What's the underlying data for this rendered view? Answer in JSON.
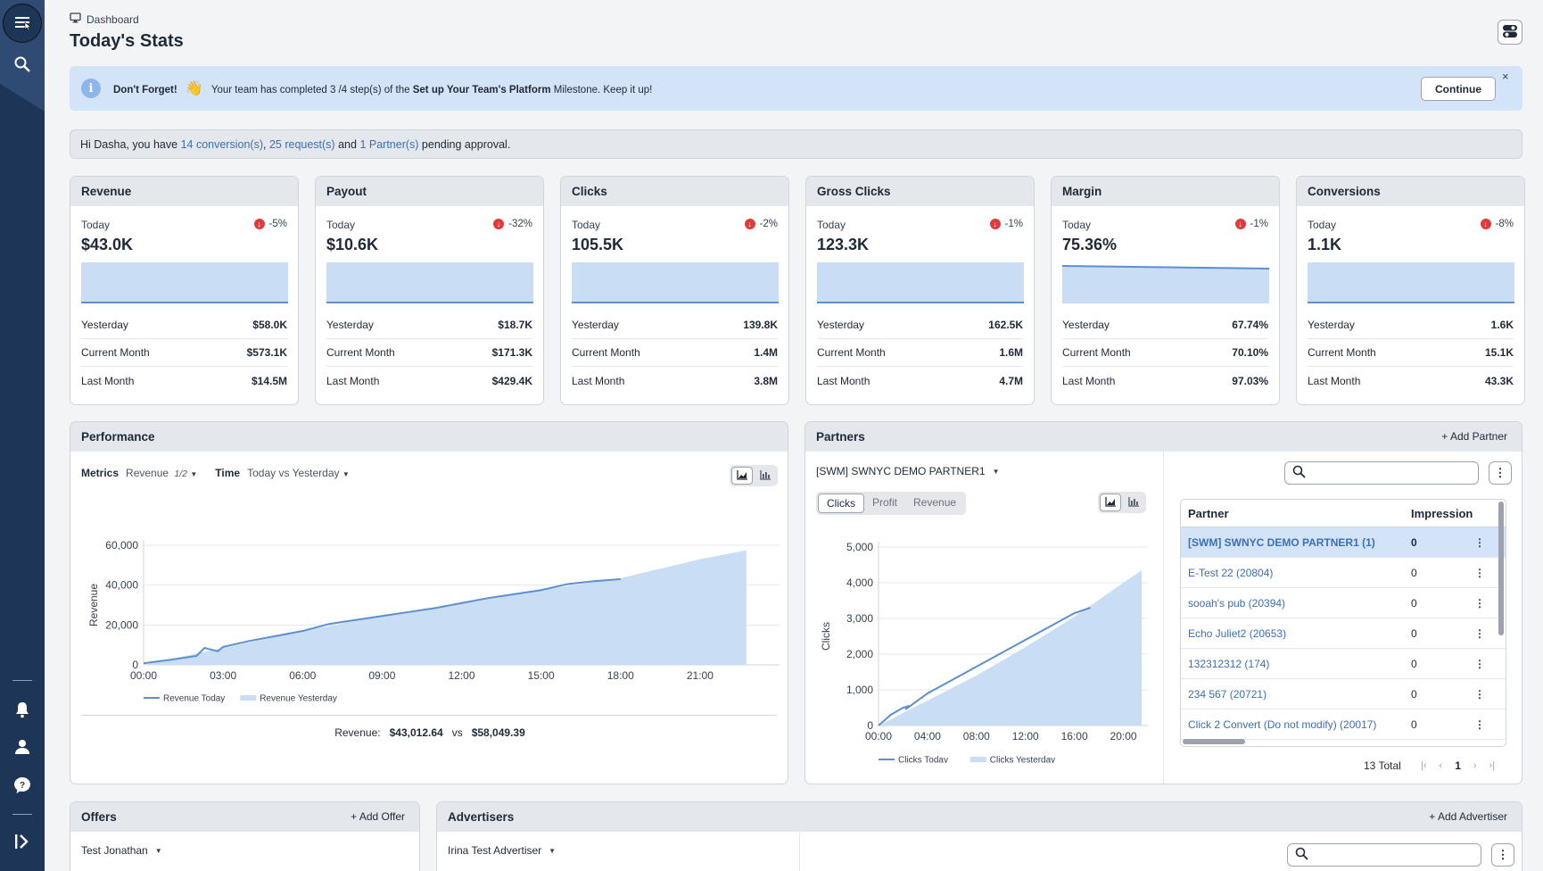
{
  "header": {
    "breadcrumb": "Dashboard",
    "title": "Today's Stats"
  },
  "milestone": {
    "lead": "Don't Forget!",
    "emoji": "👋",
    "text_before": "Your team has completed 3 /4 step(s) of the",
    "milestone_name": "Set up Your Team's Platform",
    "text_after": "Milestone. Keep it up!",
    "continue_label": "Continue",
    "close_label": "×"
  },
  "pending": {
    "prefix": "Hi Dasha, you have",
    "conversions": "14 conversion(s)",
    "sep1": ",",
    "requests": "25 request(s)",
    "and": "and",
    "partners": "1 Partner(s)",
    "suffix": "pending approval."
  },
  "stats": [
    {
      "title": "Revenue",
      "today_label": "Today",
      "change": "-5%",
      "value": "$43.0K",
      "rows": [
        [
          "Yesterday",
          "$58.0K"
        ],
        [
          "Current Month",
          "$573.1K"
        ],
        [
          "Last Month",
          "$14.5M"
        ]
      ]
    },
    {
      "title": "Payout",
      "today_label": "Today",
      "change": "-32%",
      "value": "$10.6K",
      "rows": [
        [
          "Yesterday",
          "$18.7K"
        ],
        [
          "Current Month",
          "$171.3K"
        ],
        [
          "Last Month",
          "$429.4K"
        ]
      ]
    },
    {
      "title": "Clicks",
      "today_label": "Today",
      "change": "-2%",
      "value": "105.5K",
      "rows": [
        [
          "Yesterday",
          "139.8K"
        ],
        [
          "Current Month",
          "1.4M"
        ],
        [
          "Last Month",
          "3.8M"
        ]
      ]
    },
    {
      "title": "Gross Clicks",
      "today_label": "Today",
      "change": "-1%",
      "value": "123.3K",
      "rows": [
        [
          "Yesterday",
          "162.5K"
        ],
        [
          "Current Month",
          "1.6M"
        ],
        [
          "Last Month",
          "4.7M"
        ]
      ]
    },
    {
      "title": "Margin",
      "today_label": "Today",
      "change": "-1%",
      "value": "75.36%",
      "rows": [
        [
          "Yesterday",
          "67.74%"
        ],
        [
          "Current Month",
          "70.10%"
        ],
        [
          "Last Month",
          "97.03%"
        ]
      ]
    },
    {
      "title": "Conversions",
      "today_label": "Today",
      "change": "-8%",
      "value": "1.1K",
      "rows": [
        [
          "Yesterday",
          "1.6K"
        ],
        [
          "Current Month",
          "15.1K"
        ],
        [
          "Last Month",
          "43.3K"
        ]
      ]
    }
  ],
  "performance": {
    "title": "Performance",
    "metrics_label": "Metrics",
    "metric_value": "Revenue",
    "metric_count": "1/2",
    "time_label": "Time",
    "time_value": "Today vs Yesterday",
    "footer_label": "Revenue:",
    "footer_today": "$43,012.64",
    "footer_vs": "vs",
    "footer_yesterday": "$58,049.39"
  },
  "partners": {
    "title": "Partners",
    "add_label": "Add Partner",
    "selected_partner": "[SWM] SWNYC DEMO PARTNER1",
    "tabs": [
      "Clicks",
      "Profit",
      "Revenue"
    ],
    "active_tab": "Clicks",
    "search_placeholder": "",
    "columns": [
      "Partner",
      "Impression"
    ],
    "rows": [
      {
        "name": "[SWM] SWNYC DEMO PARTNER1 (1)",
        "impressions": "0"
      },
      {
        "name": "E-Test 22 (20804)",
        "impressions": "0"
      },
      {
        "name": "sooah's pub (20394)",
        "impressions": "0"
      },
      {
        "name": "Echo Juliet2 (20653)",
        "impressions": "0"
      },
      {
        "name": "132312312 (174)",
        "impressions": "0"
      },
      {
        "name": "234 567 (20721)",
        "impressions": "0"
      },
      {
        "name": "Click 2 Convert (Do not modify) (20017)",
        "impressions": "0"
      }
    ],
    "total": "13 Total",
    "page": "1"
  },
  "offers": {
    "title": "Offers",
    "add_label": "Add Offer",
    "selected": "Test Jonathan"
  },
  "advertisers": {
    "title": "Advertisers",
    "add_label": "Add Advertiser",
    "selected": "Irina Test Advertiser",
    "search_placeholder": ""
  },
  "chart_data": [
    {
      "type": "area",
      "title": "",
      "xlabel": "",
      "ylabel": "Revenue",
      "x_ticks": [
        "00:00",
        "03:00",
        "06:00",
        "09:00",
        "12:00",
        "15:00",
        "18:00",
        "21:00"
      ],
      "y_ticks": [
        "0",
        "20,000",
        "40,000",
        "60,000"
      ],
      "xlim": [
        0,
        24
      ],
      "ylim": [
        0,
        60000
      ],
      "series": [
        {
          "name": "Revenue Today",
          "style": "line",
          "color": "#5b8fd0",
          "x": [
            0,
            1,
            2,
            2.3,
            2.8,
            3,
            4,
            5,
            6,
            7,
            8,
            9,
            10,
            11,
            12,
            13,
            14,
            15,
            16,
            17,
            18
          ],
          "y": [
            800,
            2500,
            4500,
            8500,
            6800,
            9000,
            12000,
            14500,
            17000,
            20500,
            22500,
            24500,
            26500,
            28500,
            31000,
            33500,
            35500,
            37500,
            40500,
            42000,
            43013
          ]
        },
        {
          "name": "Revenue Yesterday",
          "style": "area",
          "color": "#c9ddf5",
          "x": [
            0,
            3,
            6,
            9,
            12,
            15,
            18,
            21,
            22.75
          ],
          "y": [
            0,
            8500,
            17000,
            24500,
            31000,
            37500,
            43500,
            53000,
            57500
          ]
        }
      ]
    },
    {
      "type": "area",
      "title": "",
      "xlabel": "",
      "ylabel": "Clicks",
      "x_ticks": [
        "00:00",
        "04:00",
        "08:00",
        "12:00",
        "16:00",
        "20:00"
      ],
      "y_ticks": [
        "0",
        "1,000",
        "2,000",
        "3,000",
        "4,000",
        "5,000"
      ],
      "xlim": [
        0,
        22
      ],
      "ylim": [
        0,
        5000
      ],
      "series": [
        {
          "name": "Clicks Today",
          "style": "line",
          "color": "#5b8fd0",
          "x": [
            0,
            1,
            2,
            2.5,
            2.2,
            4,
            8,
            12,
            16,
            17.3
          ],
          "y": [
            0,
            300,
            500,
            550,
            450,
            900,
            1650,
            2400,
            3150,
            3300
          ]
        },
        {
          "name": "Clicks Yesterday",
          "style": "area",
          "color": "#c9ddf5",
          "x": [
            0,
            4,
            8,
            12,
            16,
            20,
            21.5
          ],
          "y": [
            0,
            700,
            1400,
            2200,
            3050,
            4000,
            4350
          ]
        }
      ]
    }
  ]
}
